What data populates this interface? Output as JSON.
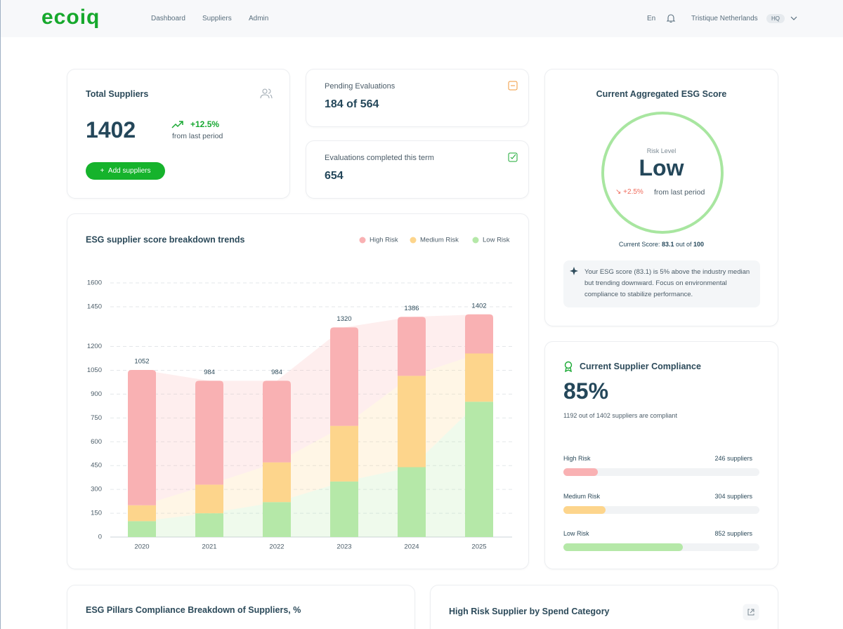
{
  "header": {
    "logo": "ecoiq",
    "nav": [
      "Dashboard",
      "Suppliers",
      "Admin"
    ],
    "language": "En",
    "company": "Tristique Netherlands",
    "badge": "HQ"
  },
  "total_suppliers": {
    "title": "Total Suppliers",
    "value": 1402,
    "change": "+12.5%",
    "change_note": "from last period",
    "button": "Add suppliers"
  },
  "pending": {
    "title": "Pending Evaluations",
    "value": "184 of 564"
  },
  "completed": {
    "title": "Evaluations completed this term",
    "value": 654
  },
  "esg_score": {
    "title": "Current Aggregated ESG Score",
    "risk_label": "Risk Level",
    "risk": "Low",
    "change": "+2.5%",
    "change_note": "from last period",
    "score_prefix": "Current Score:",
    "score": 83.1,
    "score_mid": "out of",
    "score_max": 100,
    "insight": "Your ESG score (83.1) is 5% above the industry median but trending downward. Focus on environmental compliance to stabilize performance."
  },
  "chart_data": {
    "type": "bar",
    "stacked": true,
    "title": "ESG supplier score breakdown trends",
    "categories": [
      "2020",
      "2021",
      "2022",
      "2023",
      "2024",
      "2025"
    ],
    "series": [
      {
        "name": "High Risk",
        "color": "#f9b1b3",
        "values": [
          852,
          654,
          514,
          620,
          371,
          246
        ]
      },
      {
        "name": "Medium Risk",
        "color": "#fdd58c",
        "values": [
          100,
          180,
          250,
          350,
          575,
          304
        ]
      },
      {
        "name": "Low Risk",
        "color": "#b5e8a8",
        "values": [
          100,
          150,
          220,
          350,
          440,
          852
        ]
      }
    ],
    "totals": [
      1052,
      984,
      984,
      1320,
      1386,
      1402
    ],
    "ylim": [
      0,
      1600
    ],
    "yticks": [
      0,
      150,
      300,
      450,
      600,
      750,
      900,
      1050,
      1200,
      1450,
      1600
    ],
    "grid": true
  },
  "compliance": {
    "title": "Current Supplier Compliance",
    "value": "85%",
    "note": "1192 out of 1402 suppliers are compliant",
    "rows": [
      {
        "name": "High Risk",
        "value": 246,
        "label": "246 suppliers",
        "color": "#f9b1b3"
      },
      {
        "name": "Medium Risk",
        "value": 304,
        "label": "304 suppliers",
        "color": "#fdd58c"
      },
      {
        "name": "Low Risk",
        "value": 852,
        "label": "852 suppliers",
        "color": "#b5e8a8"
      }
    ]
  },
  "bottom": {
    "left_title": "ESG Pillars Compliance Breakdown of Suppliers, %",
    "right_title": "High Risk Supplier by Spend Category"
  }
}
